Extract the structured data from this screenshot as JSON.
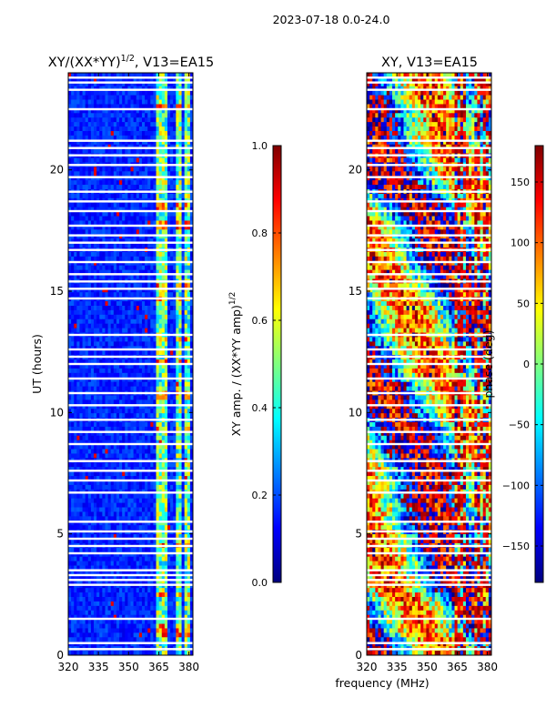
{
  "suptitle": "2023-07-18 0.0-24.0",
  "colors": {
    "jet": [
      "#00007f",
      "#0000ff",
      "#007fff",
      "#00ffff",
      "#7fff7f",
      "#ffff00",
      "#ff7f00",
      "#ff0000",
      "#7f0000"
    ],
    "gap": "#ffffff",
    "frame": "#000000"
  },
  "chart_data": [
    {
      "type": "heatmap",
      "title_text": "XY/(XX*YY)",
      "title_sup": "1/2",
      "title_tail": ", V13=EA15",
      "xlabel": "",
      "ylabel": "UT (hours)",
      "xlim": [
        320,
        382
      ],
      "ylim": [
        0,
        24
      ],
      "xticks": [
        320,
        335,
        350,
        365,
        380
      ],
      "yticks": [
        0,
        5,
        10,
        15,
        20
      ],
      "gap_hours": [
        0.25,
        0.5,
        1.5,
        2.9,
        3.1,
        3.3,
        3.5,
        4.2,
        4.5,
        4.8,
        5.1,
        5.5,
        6.7,
        7.2,
        7.6,
        8.0,
        8.7,
        9.2,
        9.7,
        10.3,
        10.8,
        11.4,
        12.0,
        12.3,
        12.6,
        13.2,
        14.7,
        15.1,
        15.4,
        15.7,
        16.2,
        16.7,
        17.0,
        17.3,
        17.7,
        18.3,
        18.7,
        19.1,
        19.7,
        20.2,
        20.6,
        20.9,
        21.2,
        22.5,
        23.3,
        23.6,
        23.8
      ],
      "rfi_bands_mhz": [
        [
          363,
          366
        ],
        [
          367,
          369
        ],
        [
          374,
          377
        ],
        [
          378,
          381
        ]
      ],
      "value_range": [
        0.0,
        1.0
      ],
      "colorbar": {
        "label_text": "XY amp. / (XX*YY amp)",
        "label_sup": "1/2",
        "ticks": [
          "0.0",
          "0.2",
          "0.4",
          "0.6",
          "0.8",
          "1.0"
        ]
      }
    },
    {
      "type": "heatmap",
      "title_text": "XY, V13=EA15",
      "xlabel": "frequency (MHz)",
      "ylabel": "",
      "xlim": [
        320,
        382
      ],
      "ylim": [
        0,
        24
      ],
      "xticks": [
        320,
        335,
        350,
        365,
        380
      ],
      "yticks": [
        0,
        5,
        10,
        15,
        20
      ],
      "gap_hours": [
        0.25,
        0.5,
        1.5,
        2.9,
        3.1,
        3.3,
        3.5,
        4.2,
        4.5,
        4.8,
        5.1,
        5.5,
        6.7,
        7.2,
        7.6,
        8.0,
        8.7,
        9.2,
        9.7,
        10.3,
        10.8,
        11.4,
        12.0,
        12.3,
        12.6,
        13.2,
        14.7,
        15.1,
        15.4,
        15.7,
        16.2,
        16.7,
        17.0,
        17.3,
        17.7,
        18.3,
        18.7,
        19.1,
        19.7,
        20.2,
        20.6,
        20.9,
        21.2,
        22.5,
        23.3,
        23.6,
        23.8
      ],
      "value_range": [
        -180,
        180
      ],
      "colorbar": {
        "label_text": "phase (deg)",
        "ticks": [
          "−150",
          "−100",
          "−50",
          "0",
          "50",
          "100",
          "150"
        ],
        "tick_values": [
          -150,
          -100,
          -50,
          0,
          50,
          100,
          150
        ]
      }
    }
  ]
}
